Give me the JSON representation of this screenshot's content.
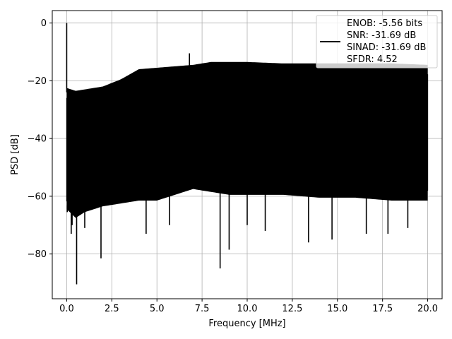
{
  "chart_data": {
    "type": "line",
    "xlabel": "Frequency [MHz]",
    "ylabel": "PSD [dB]",
    "xlim": [
      -0.8,
      20.8
    ],
    "ylim": [
      -95.5,
      4.3
    ],
    "grid": true,
    "legend_placement": "upper-right",
    "line_color": "#000000",
    "x_ticks": [
      0.0,
      2.5,
      5.0,
      7.5,
      10.0,
      12.5,
      15.0,
      17.5,
      20.0
    ],
    "x_tick_labels": [
      "0.0",
      "2.5",
      "5.0",
      "7.5",
      "10.0",
      "12.5",
      "15.0",
      "17.5",
      "20.0"
    ],
    "y_ticks": [
      0,
      -20,
      -40,
      -60,
      -80
    ],
    "y_tick_labels": [
      "0",
      "−20",
      "−40",
      "−60",
      "−80"
    ],
    "legend": [
      "ENOB: -5.56 bits",
      "SNR: -31.69 dB",
      "SINAD: -31.69 dB",
      "SFDR: 4.52"
    ],
    "envelope": {
      "x": [
        0.0,
        0.5,
        1.0,
        2.0,
        3.0,
        4.0,
        5.0,
        6.0,
        7.0,
        8.0,
        9.0,
        10.0,
        12.0,
        14.0,
        16.0,
        18.0,
        20.0
      ],
      "upper": [
        -24,
        -25,
        -24.5,
        -23.5,
        -21,
        -17.5,
        -17,
        -16.5,
        -16,
        -15,
        -15,
        -15,
        -15.5,
        -15.5,
        -15.5,
        -15.5,
        -16
      ],
      "lower": [
        -63,
        -66,
        -64,
        -62,
        -61,
        -60,
        -60,
        -58,
        -56,
        -57,
        -58,
        -58,
        -58,
        -59,
        -59,
        -60,
        -60
      ]
    },
    "peaks": [
      {
        "x": 0.0,
        "y": 0
      },
      {
        "x": 6.8,
        "y": -10.5
      }
    ],
    "dips": [
      {
        "x": 0.03,
        "y": -65.5
      },
      {
        "x": 0.3,
        "y": -70
      },
      {
        "x": 0.55,
        "y": -90.5
      },
      {
        "x": 0.25,
        "y": -73
      },
      {
        "x": 1.0,
        "y": -71
      },
      {
        "x": 1.9,
        "y": -81.5
      },
      {
        "x": 4.4,
        "y": -73
      },
      {
        "x": 5.7,
        "y": -70
      },
      {
        "x": 8.5,
        "y": -85
      },
      {
        "x": 9.0,
        "y": -78.5
      },
      {
        "x": 10.0,
        "y": -70
      },
      {
        "x": 11.0,
        "y": -72
      },
      {
        "x": 13.4,
        "y": -76
      },
      {
        "x": 14.7,
        "y": -75
      },
      {
        "x": 16.6,
        "y": -73
      },
      {
        "x": 17.8,
        "y": -73
      },
      {
        "x": 18.9,
        "y": -71
      }
    ]
  }
}
